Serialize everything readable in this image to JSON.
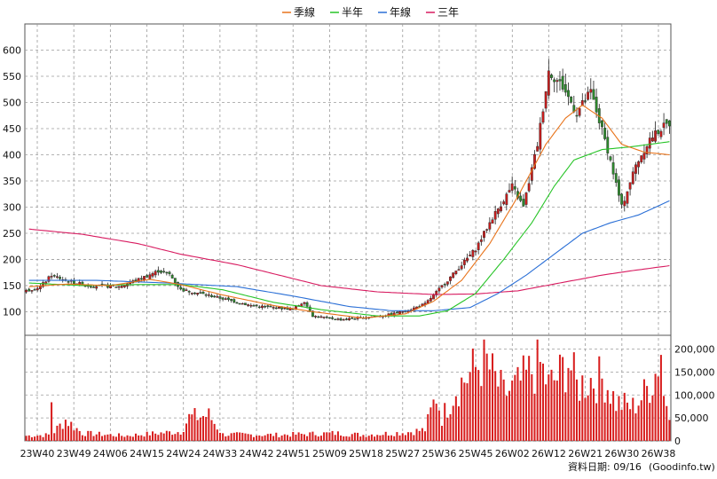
{
  "legend": [
    {
      "name": "季線",
      "color": "#e8731a"
    },
    {
      "name": "半年",
      "color": "#27c427"
    },
    {
      "name": "年線",
      "color": "#2a6fd6"
    },
    {
      "name": "三年",
      "color": "#d81b60"
    }
  ],
  "footer": {
    "date_label": "資料日期: 09/16",
    "source": "(Goodinfo.tw)"
  },
  "colors": {
    "up": "#c81e1e",
    "down": "#2e8b2e",
    "volume": "#d81e1e",
    "grid": "#9a9a9a"
  },
  "chart_data": {
    "type": "candlestick+volume",
    "x_ticks": [
      "23W40",
      "23W49",
      "24W06",
      "24W15",
      "24W24",
      "24W33",
      "24W42",
      "24W51",
      "25W09",
      "25W18",
      "25W27",
      "25W36",
      "25W45",
      "26W02",
      "26W12",
      "26W21",
      "26W30",
      "26W38"
    ],
    "price_axis": {
      "ticks": [
        100,
        150,
        200,
        250,
        300,
        350,
        400,
        450,
        500,
        550,
        600
      ],
      "ylim": [
        55,
        650
      ]
    },
    "volume_axis": {
      "ticks": [
        "0",
        "50,000",
        "100,000",
        "150,000",
        "200,000"
      ],
      "ylim": [
        0,
        230000
      ]
    },
    "price_control_points": [
      [
        0,
        140
      ],
      [
        5,
        148
      ],
      [
        9,
        170
      ],
      [
        14,
        160
      ],
      [
        22,
        150
      ],
      [
        33,
        148
      ],
      [
        40,
        162
      ],
      [
        47,
        178
      ],
      [
        51,
        172
      ],
      [
        55,
        142
      ],
      [
        62,
        135
      ],
      [
        70,
        125
      ],
      [
        80,
        112
      ],
      [
        88,
        108
      ],
      [
        95,
        105
      ],
      [
        99,
        120
      ],
      [
        102,
        92
      ],
      [
        112,
        85
      ],
      [
        122,
        90
      ],
      [
        130,
        95
      ],
      [
        137,
        105
      ],
      [
        142,
        115
      ],
      [
        150,
        160
      ],
      [
        160,
        220
      ],
      [
        166,
        280
      ],
      [
        173,
        340
      ],
      [
        177,
        300
      ],
      [
        182,
        420
      ],
      [
        186,
        560
      ],
      [
        191,
        530
      ],
      [
        196,
        480
      ],
      [
        201,
        520
      ],
      [
        207,
        410
      ],
      [
        212,
        300
      ],
      [
        217,
        380
      ],
      [
        222,
        430
      ],
      [
        226,
        450
      ],
      [
        229,
        460
      ]
    ],
    "ma_quarter_control": [
      [
        1,
        148
      ],
      [
        15,
        153
      ],
      [
        30,
        150
      ],
      [
        44,
        162
      ],
      [
        55,
        152
      ],
      [
        70,
        132
      ],
      [
        88,
        112
      ],
      [
        102,
        100
      ],
      [
        120,
        88
      ],
      [
        135,
        96
      ],
      [
        145,
        120
      ],
      [
        155,
        160
      ],
      [
        165,
        230
      ],
      [
        175,
        320
      ],
      [
        185,
        420
      ],
      [
        192,
        470
      ],
      [
        198,
        495
      ],
      [
        205,
        470
      ],
      [
        212,
        420
      ],
      [
        220,
        405
      ],
      [
        229,
        400
      ]
    ],
    "ma_halfyear_control": [
      [
        1,
        155
      ],
      [
        20,
        150
      ],
      [
        40,
        152
      ],
      [
        55,
        152
      ],
      [
        70,
        142
      ],
      [
        88,
        118
      ],
      [
        105,
        104
      ],
      [
        125,
        92
      ],
      [
        140,
        92
      ],
      [
        150,
        102
      ],
      [
        160,
        135
      ],
      [
        170,
        200
      ],
      [
        180,
        270
      ],
      [
        188,
        340
      ],
      [
        195,
        390
      ],
      [
        205,
        410
      ],
      [
        215,
        415
      ],
      [
        229,
        425
      ]
    ],
    "ma_year_control": [
      [
        1,
        160
      ],
      [
        25,
        160
      ],
      [
        50,
        155
      ],
      [
        75,
        148
      ],
      [
        95,
        130
      ],
      [
        115,
        110
      ],
      [
        130,
        102
      ],
      [
        145,
        102
      ],
      [
        158,
        108
      ],
      [
        168,
        135
      ],
      [
        178,
        170
      ],
      [
        188,
        210
      ],
      [
        198,
        250
      ],
      [
        208,
        270
      ],
      [
        218,
        285
      ],
      [
        229,
        312
      ]
    ],
    "ma_3year_control": [
      [
        1,
        258
      ],
      [
        20,
        248
      ],
      [
        40,
        230
      ],
      [
        55,
        210
      ],
      [
        75,
        190
      ],
      [
        90,
        170
      ],
      [
        105,
        150
      ],
      [
        125,
        138
      ],
      [
        145,
        133
      ],
      [
        160,
        134
      ],
      [
        175,
        140
      ],
      [
        190,
        155
      ],
      [
        205,
        170
      ],
      [
        215,
        178
      ],
      [
        229,
        188
      ]
    ],
    "volume_control": [
      [
        0,
        12000
      ],
      [
        8,
        14000
      ],
      [
        9,
        98000
      ],
      [
        10,
        22000
      ],
      [
        14,
        50000
      ],
      [
        20,
        18000
      ],
      [
        35,
        12000
      ],
      [
        55,
        22000
      ],
      [
        58,
        55000
      ],
      [
        65,
        60000
      ],
      [
        70,
        15000
      ],
      [
        90,
        14000
      ],
      [
        100,
        16000
      ],
      [
        110,
        18000
      ],
      [
        120,
        14000
      ],
      [
        135,
        20000
      ],
      [
        142,
        26000
      ],
      [
        146,
        108000
      ],
      [
        148,
        54000
      ],
      [
        153,
        125000
      ],
      [
        160,
        170000
      ],
      [
        163,
        195000
      ],
      [
        166,
        155000
      ],
      [
        170,
        110000
      ],
      [
        175,
        130000
      ],
      [
        180,
        165000
      ],
      [
        183,
        178000
      ],
      [
        186,
        130000
      ],
      [
        190,
        155000
      ],
      [
        193,
        192000
      ],
      [
        196,
        128000
      ],
      [
        201,
        145000
      ],
      [
        206,
        145000
      ],
      [
        210,
        90000
      ],
      [
        216,
        80000
      ],
      [
        220,
        110000
      ],
      [
        224,
        160000
      ],
      [
        226,
        220000
      ],
      [
        227,
        105000
      ],
      [
        228,
        95000
      ],
      [
        229,
        80000
      ]
    ],
    "weeks": 230
  }
}
